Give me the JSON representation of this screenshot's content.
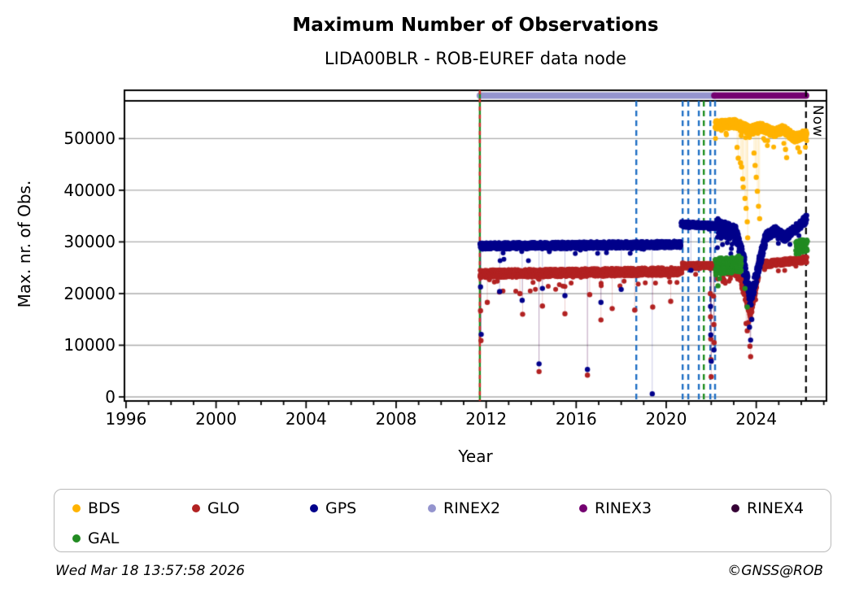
{
  "chart_data": {
    "type": "scatter",
    "title": "Maximum Number of Observations",
    "subtitle": "LIDA00BLR - ROB-EUREF data node",
    "xlabel": "Year",
    "ylabel": "Max. nr. of Obs.",
    "x_range": [
      1995.93,
      2027.12
    ],
    "y_range": [
      -790,
      57300
    ],
    "x_major_ticks": [
      1996,
      2000,
      2004,
      2008,
      2012,
      2016,
      2020,
      2024
    ],
    "x_minor_step": 1,
    "y_ticks": [
      0,
      10000,
      20000,
      30000,
      40000,
      50000
    ],
    "grid": "horizontal-gray",
    "gridline_color": "#ABABAB",
    "now_line": {
      "x": 2026.21,
      "label": "Now",
      "color": "#000000"
    },
    "rinex_bars": [
      {
        "name": "RINEX2",
        "start": 2011.72,
        "end": 2022.14,
        "color": "#9494CE"
      },
      {
        "name": "RINEX3",
        "start": 2022.14,
        "end": 2026.21,
        "color": "#740070"
      }
    ],
    "event_lines": [
      {
        "x": 2011.72,
        "color": "#1C8C1C",
        "style": "solid",
        "overlay_color": "#D42A2A"
      },
      {
        "x": 2018.67,
        "color": "#1F6FC4",
        "style": "dashed"
      },
      {
        "x": 2020.73,
        "color": "#1F6FC4",
        "style": "dashed"
      },
      {
        "x": 2020.98,
        "color": "#1F6FC4",
        "style": "dashed"
      },
      {
        "x": 2021.45,
        "color": "#1F6FC4",
        "style": "dashed"
      },
      {
        "x": 2021.67,
        "color": "#1C8C1C",
        "style": "dashed"
      },
      {
        "x": 2021.96,
        "color": "#1F6FC4",
        "style": "dashed"
      },
      {
        "x": 2022.17,
        "color": "#1F6FC4",
        "style": "dashed"
      }
    ],
    "legend": [
      {
        "label": "BDS",
        "color": "#FFB300"
      },
      {
        "label": "GLO",
        "color": "#B22222"
      },
      {
        "label": "GPS",
        "color": "#00008B"
      },
      {
        "label": "RINEX2",
        "color": "#9494CE"
      },
      {
        "label": "RINEX3",
        "color": "#740070"
      },
      {
        "label": "RINEX4",
        "color": "#350035"
      },
      {
        "label": "GAL",
        "color": "#228B22"
      }
    ],
    "series": [
      {
        "name": "GLO",
        "color": "#B22222",
        "segments": [
          {
            "t": [
              2011.72,
              2020.7
            ],
            "base": [
              [
                2011.72,
                23800
              ],
              [
                2020.7,
                24300
              ]
            ],
            "amp": 750,
            "density": 150,
            "spike_p": 0.03,
            "spike_d": 3000
          },
          {
            "t": [
              2020.7,
              2022.2
            ],
            "base": [
              [
                2020.7,
                25400
              ],
              [
                2022.2,
                25300
              ]
            ],
            "amp": 550,
            "density": 150,
            "spike_p": 0.02,
            "spike_d": 2200
          },
          {
            "t": [
              2022.2,
              2024.1
            ],
            "base": [
              [
                2022.2,
                25100
              ],
              [
                2023.2,
                24600
              ],
              [
                2023.75,
                16200
              ],
              [
                2024.1,
                24200
              ]
            ],
            "amp": 1100,
            "density": 180,
            "spike_p": 0.05,
            "spike_d": 2800
          },
          {
            "t": [
              2024.1,
              2026.25
            ],
            "base": [
              [
                2024.1,
                25600
              ],
              [
                2026.25,
                26600
              ]
            ],
            "amp": 600,
            "density": 160,
            "spike_p": 0.02,
            "spike_d": 2000
          }
        ],
        "outliers": [
          [
            2011.75,
            16700
          ],
          [
            2011.77,
            10900
          ],
          [
            2012.05,
            18300
          ],
          [
            2013.5,
            20000
          ],
          [
            2013.62,
            16000
          ],
          [
            2014.35,
            4900
          ],
          [
            2014.5,
            17600
          ],
          [
            2015.5,
            16100
          ],
          [
            2016.5,
            4200
          ],
          [
            2016.6,
            19800
          ],
          [
            2017.1,
            14900
          ],
          [
            2017.6,
            17100
          ],
          [
            2018.6,
            16800
          ],
          [
            2019.4,
            17400
          ],
          [
            2020.2,
            18500
          ],
          [
            2021.96,
            20000
          ],
          [
            2021.97,
            15500
          ],
          [
            2021.98,
            11200
          ],
          [
            2021.99,
            7200
          ],
          [
            2022.0,
            3900
          ],
          [
            2022.1,
            19500
          ],
          [
            2022.12,
            14000
          ],
          [
            2022.13,
            10500
          ],
          [
            2023.55,
            14200
          ],
          [
            2023.6,
            12800
          ],
          [
            2023.72,
            9800
          ],
          [
            2023.75,
            7800
          ]
        ]
      },
      {
        "name": "GPS",
        "color": "#00008B",
        "segments": [
          {
            "t": [
              2011.72,
              2020.66
            ],
            "base": [
              [
                2011.72,
                29200
              ],
              [
                2020.66,
                29500
              ]
            ],
            "amp": 650,
            "density": 150,
            "spike_p": 0.02,
            "spike_d": 3200
          },
          {
            "t": [
              2020.66,
              2022.25
            ],
            "base": [
              [
                2020.66,
                33400
              ],
              [
                2022.25,
                33100
              ]
            ],
            "amp": 550,
            "density": 150,
            "spike_p": 0.015,
            "spike_d": 2500
          },
          {
            "t": [
              2022.25,
              2024.4
            ],
            "base": [
              [
                2022.25,
                33000
              ],
              [
                2023.1,
                31500
              ],
              [
                2023.45,
                26500
              ],
              [
                2023.75,
                18800
              ],
              [
                2024.0,
                23500
              ],
              [
                2024.4,
                30500
              ]
            ],
            "amp": 1600,
            "density": 220,
            "spike_p": 0.05,
            "spike_d": 3000
          },
          {
            "t": [
              2024.4,
              2026.25
            ],
            "base": [
              [
                2024.4,
                31000
              ],
              [
                2024.9,
                32300
              ],
              [
                2025.25,
                30800
              ],
              [
                2025.8,
                32800
              ],
              [
                2026.25,
                34500
              ]
            ],
            "amp": 900,
            "density": 160,
            "spike_p": 0.02,
            "spike_d": 2500
          }
        ],
        "outliers": [
          [
            2011.75,
            21300
          ],
          [
            2011.78,
            12100
          ],
          [
            2012.6,
            20400
          ],
          [
            2013.6,
            18700
          ],
          [
            2014.35,
            6400
          ],
          [
            2014.5,
            21000
          ],
          [
            2015.5,
            19600
          ],
          [
            2016.5,
            5300
          ],
          [
            2017.1,
            18300
          ],
          [
            2018.0,
            20800
          ],
          [
            2019.38,
            600
          ],
          [
            2021.1,
            24500
          ],
          [
            2021.97,
            17500
          ],
          [
            2021.98,
            12000
          ],
          [
            2022.0,
            6900
          ],
          [
            2022.12,
            9100
          ],
          [
            2023.7,
            13500
          ],
          [
            2023.75,
            11000
          ],
          [
            2023.8,
            15000
          ]
        ]
      },
      {
        "name": "GAL",
        "color": "#228B22",
        "segments": [
          {
            "t": [
              2022.17,
              2023.35
            ],
            "base": [
              [
                2022.17,
                25200
              ],
              [
                2023.35,
                25800
              ]
            ],
            "amp": 1600,
            "density": 160,
            "spike_p": 0.02,
            "spike_d": 2000
          },
          {
            "t": [
              2025.75,
              2026.28
            ],
            "base": [
              [
                2025.75,
                28800
              ],
              [
                2026.28,
                29500
              ]
            ],
            "amp": 1300,
            "density": 160,
            "spike_p": 0.02,
            "spike_d": 1500
          }
        ],
        "outliers": [
          [
            2022.3,
            21500
          ],
          [
            2023.5,
            21000
          ],
          [
            2023.6,
            17400
          ]
        ]
      },
      {
        "name": "BDS",
        "color": "#FFB300",
        "segments": [
          {
            "t": [
              2022.17,
              2026.25
            ],
            "base": [
              [
                2022.17,
                52600
              ],
              [
                2023.1,
                52900
              ],
              [
                2023.7,
                51600
              ],
              [
                2024.2,
                52200
              ],
              [
                2024.8,
                51100
              ],
              [
                2025.2,
                51800
              ],
              [
                2025.7,
                50100
              ],
              [
                2026.25,
                50900
              ]
            ],
            "amp": 850,
            "density": 220,
            "spike_p": 0.04,
            "spike_d": 2500
          }
        ],
        "outliers": [
          [
            2023.15,
            48300
          ],
          [
            2023.2,
            46200
          ],
          [
            2023.3,
            45300
          ],
          [
            2023.35,
            44500
          ],
          [
            2023.4,
            42200
          ],
          [
            2023.42,
            40600
          ],
          [
            2023.5,
            38400
          ],
          [
            2023.55,
            36500
          ],
          [
            2023.6,
            33900
          ],
          [
            2023.62,
            30800
          ],
          [
            2023.9,
            47200
          ],
          [
            2023.95,
            44800
          ],
          [
            2024.0,
            42500
          ],
          [
            2024.05,
            39800
          ],
          [
            2024.1,
            36900
          ],
          [
            2024.15,
            34500
          ],
          [
            2025.3,
            47900
          ],
          [
            2025.35,
            46300
          ],
          [
            2025.85,
            48200
          ]
        ]
      }
    ]
  },
  "footer": {
    "timestamp": "Wed Mar 18 13:57:58 2026",
    "credit": "©GNSS@ROB"
  }
}
